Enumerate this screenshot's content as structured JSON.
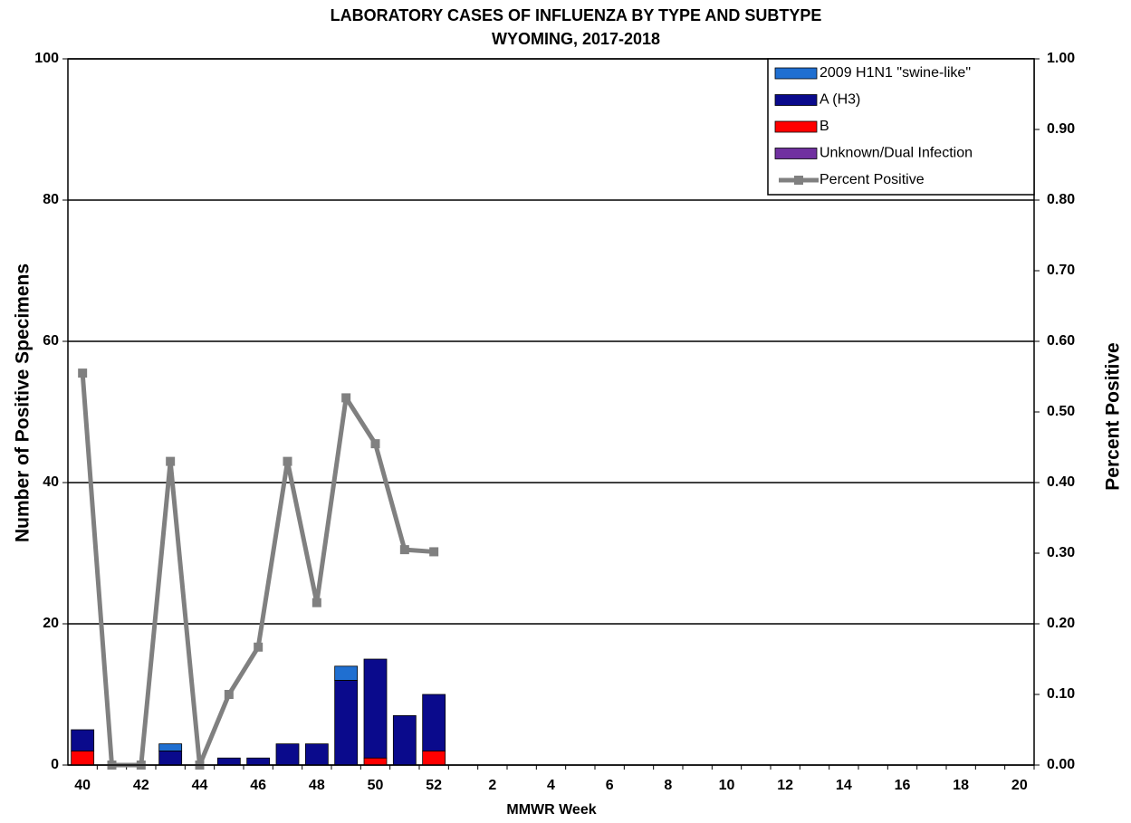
{
  "chart_data": {
    "type": "bar",
    "title": "LABORATORY CASES OF INFLUENZA BY TYPE AND SUBTYPE",
    "subtitle": "WYOMING, 2017-2018",
    "x_label": "MMWR Week",
    "y_label": "Number of Positive Specimens",
    "y2_label": "Percent Positive",
    "categories": [
      40,
      null,
      42,
      null,
      44,
      null,
      46,
      null,
      48,
      null,
      50,
      null,
      52,
      null,
      2,
      null,
      4,
      null,
      6,
      null,
      8,
      null,
      10,
      null,
      12,
      null,
      14,
      null,
      16,
      null,
      18,
      null,
      20
    ],
    "series": [
      {
        "name": "2009 H1N1 \"swine-like\"",
        "color": "#1f6fd1",
        "values": [
          0,
          0,
          0,
          1,
          0,
          0,
          0,
          0,
          0,
          2,
          0,
          0,
          0,
          null,
          null,
          null,
          null,
          null,
          null,
          null,
          null,
          null,
          null,
          null,
          null,
          null,
          null,
          null,
          null,
          null,
          null,
          null,
          null
        ]
      },
      {
        "name": "A (H3)",
        "color": "#0a0a8c",
        "values": [
          3,
          0,
          0,
          2,
          0,
          1,
          1,
          3,
          3,
          12,
          14,
          7,
          8,
          null,
          null,
          null,
          null,
          null,
          null,
          null,
          null,
          null,
          null,
          null,
          null,
          null,
          null,
          null,
          null,
          null,
          null,
          null,
          null
        ]
      },
      {
        "name": "B",
        "color": "#ff0000",
        "values": [
          2,
          0,
          0,
          0,
          0,
          0,
          0,
          0,
          0,
          0,
          1,
          0,
          2,
          null,
          null,
          null,
          null,
          null,
          null,
          null,
          null,
          null,
          null,
          null,
          null,
          null,
          null,
          null,
          null,
          null,
          null,
          null,
          null
        ]
      },
      {
        "name": "Unknown/Dual Infection",
        "color": "#7030a0",
        "values": [
          0,
          0,
          0,
          0,
          0,
          0,
          0,
          0,
          0,
          0,
          0,
          0,
          0,
          null,
          null,
          null,
          null,
          null,
          null,
          null,
          null,
          null,
          null,
          null,
          null,
          null,
          null,
          null,
          null,
          null,
          null,
          null,
          null
        ]
      },
      {
        "name": "Percent Positive",
        "color": "#808080",
        "type": "line",
        "axis": "y2",
        "values": [
          0.555,
          0,
          0,
          0.43,
          0,
          0.1,
          0.167,
          0.43,
          0.23,
          0.52,
          0.455,
          0.305,
          0.302,
          null,
          null,
          null,
          null,
          null,
          null,
          null,
          null,
          null,
          null,
          null,
          null,
          null,
          null,
          null,
          null,
          null,
          null,
          null,
          null
        ]
      }
    ],
    "ylim": [
      0,
      100
    ],
    "yticks": [
      0,
      20,
      40,
      60,
      80,
      100
    ],
    "y2lim": [
      0,
      1
    ],
    "y2ticks": [
      {
        "value": 0,
        "label": "0.00"
      },
      {
        "value": 0.1,
        "label": "0.10"
      },
      {
        "value": 0.2,
        "label": "0.20"
      },
      {
        "value": 0.3,
        "label": "0.30"
      },
      {
        "value": 0.4,
        "label": "0.40"
      },
      {
        "value": 0.5,
        "label": "0.50"
      },
      {
        "value": 0.6,
        "label": "0.60"
      },
      {
        "value": 0.7,
        "label": "0.70"
      },
      {
        "value": 0.8,
        "label": "0.80"
      },
      {
        "value": 0.9,
        "label": "0.90"
      },
      {
        "value": 1,
        "label": "1.00"
      }
    ],
    "grid": true,
    "stacked": true,
    "legend": "top-right"
  }
}
